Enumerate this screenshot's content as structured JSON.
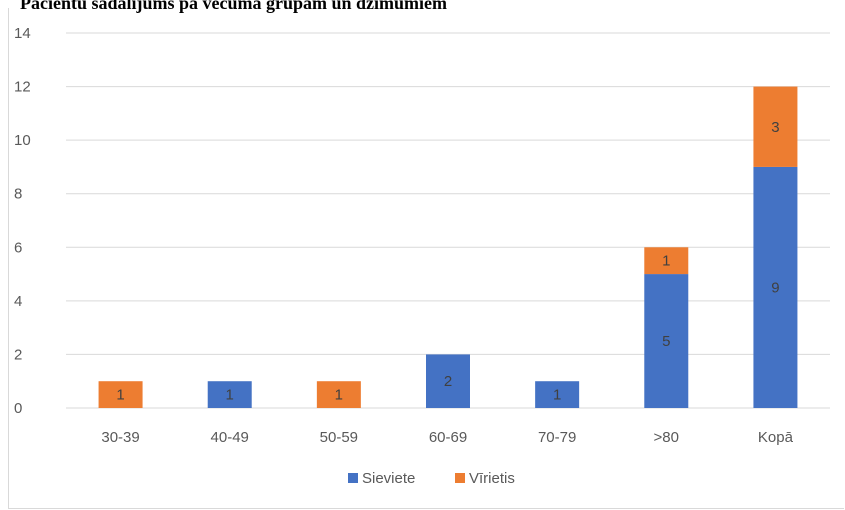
{
  "page_title": "Pacientu sadalījums pa vecuma grupām un dzimumiem",
  "colors": {
    "sieviete": "#4472C4",
    "virietis": "#ED7D31",
    "grid": "#d9d9d9",
    "axis_text": "#595959"
  },
  "chart_data": {
    "type": "bar",
    "stacked": true,
    "categories": [
      "30-39",
      "40-49",
      "50-59",
      "60-69",
      "70-79",
      ">80",
      "Kopā"
    ],
    "series": [
      {
        "name": "Sieviete",
        "values": [
          0,
          1,
          0,
          2,
          1,
          5,
          9
        ]
      },
      {
        "name": "Vīrietis",
        "values": [
          1,
          0,
          1,
          0,
          0,
          1,
          3
        ]
      }
    ],
    "ylim": [
      0,
      14
    ],
    "yticks": [
      0,
      2,
      4,
      6,
      8,
      10,
      12,
      14
    ],
    "grid": true,
    "legend": "bottom",
    "title": "",
    "xlabel": "",
    "ylabel": ""
  }
}
